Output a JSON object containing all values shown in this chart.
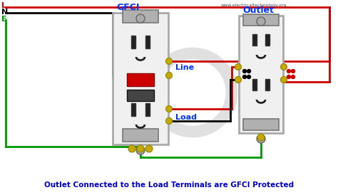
{
  "title": "Outlet Connected to the Load Terminals are GFCI Protected",
  "title_color": "#0000CC",
  "title_fontsize": 7.5,
  "watermark": "www.electricaltechnology.org",
  "bg_color": "#ffffff",
  "line_labels": [
    "L",
    "N",
    "E"
  ],
  "label_colors": [
    "#cc0000",
    "#000000",
    "#009900"
  ],
  "gfci_label": "GFCI",
  "gfci_label_color": "#0033ff",
  "outlet_label": "Outlet",
  "outlet_label_color": "#0033ff",
  "line_text": "Line",
  "line_text_color": "#0033ff",
  "load_text": "Load",
  "load_text_color": "#0033ff",
  "wire_red": "#cc0000",
  "wire_black": "#000000",
  "wire_green": "#009900",
  "outlet_body": "#f0f0f0",
  "outlet_border": "#aaaaaa",
  "bracket_color": "#999999",
  "slot_color": "#222222",
  "screw_gold": "#c8a800",
  "reset_color": "#cc0000",
  "test_color": "#444444",
  "wire_lw": 2.0
}
